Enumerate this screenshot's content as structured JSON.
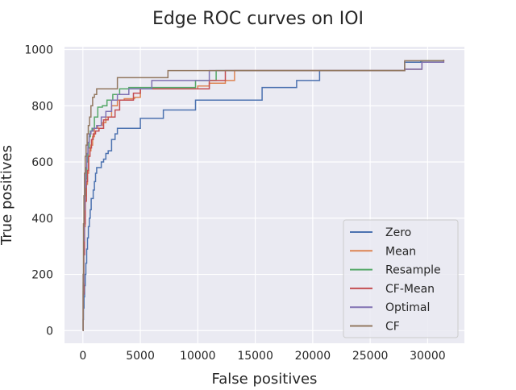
{
  "chart_data": {
    "type": "line",
    "title": "Edge ROC curves on IOI",
    "xlabel": "False positives",
    "ylabel": "True positives",
    "xlim": [
      -1600,
      33200
    ],
    "ylim": [
      -45,
      1010
    ],
    "xticks": [
      0,
      5000,
      10000,
      15000,
      20000,
      25000,
      30000
    ],
    "yticks": [
      0,
      200,
      400,
      600,
      800,
      1000
    ],
    "grid": true,
    "legend_position": "lower right",
    "background": "#eaeaf2",
    "series": [
      {
        "name": "Zero",
        "color": "#4c72b0",
        "x": [
          0,
          20,
          50,
          100,
          150,
          200,
          260,
          330,
          400,
          480,
          560,
          640,
          720,
          800,
          900,
          1000,
          1100,
          1200,
          1400,
          1600,
          1800,
          2000,
          2200,
          2500,
          2800,
          3000,
          5000,
          7000,
          9800,
          15600,
          18600,
          20600,
          28000,
          29400,
          31400
        ],
        "y": [
          0,
          40,
          80,
          120,
          160,
          200,
          240,
          290,
          330,
          370,
          400,
          430,
          470,
          470,
          500,
          530,
          560,
          580,
          580,
          600,
          610,
          630,
          640,
          680,
          700,
          720,
          755,
          785,
          820,
          865,
          890,
          925,
          955,
          960,
          963
        ]
      },
      {
        "name": "Mean",
        "color": "#dd8452",
        "x": [
          0,
          30,
          80,
          130,
          200,
          300,
          400,
          500,
          600,
          700,
          850,
          1000,
          1300,
          1700,
          2000,
          2500,
          3000,
          3600,
          4200,
          4500,
          5000,
          10000,
          11000,
          12400,
          13200,
          28000,
          29500,
          31400
        ],
        "y": [
          0,
          140,
          280,
          370,
          460,
          520,
          560,
          620,
          640,
          660,
          690,
          720,
          730,
          740,
          760,
          800,
          820,
          825,
          825,
          830,
          860,
          870,
          880,
          890,
          925,
          930,
          955,
          963
        ]
      },
      {
        "name": "Resample",
        "color": "#55a868",
        "x": [
          0,
          30,
          70,
          120,
          180,
          260,
          350,
          450,
          550,
          650,
          800,
          1000,
          1300,
          1700,
          2100,
          2600,
          3200,
          4000,
          5000,
          9800,
          11600,
          28000,
          29500,
          31400
        ],
        "y": [
          0,
          160,
          300,
          400,
          480,
          540,
          600,
          650,
          690,
          710,
          720,
          760,
          795,
          800,
          820,
          840,
          860,
          865,
          865,
          890,
          925,
          930,
          960,
          963
        ]
      },
      {
        "name": "CF-Mean",
        "color": "#c44e52",
        "x": [
          0,
          30,
          80,
          140,
          210,
          300,
          400,
          500,
          620,
          750,
          900,
          1100,
          1400,
          1800,
          2200,
          2800,
          3200,
          4400,
          5000,
          11000,
          12400,
          28000,
          29500,
          31400
        ],
        "y": [
          0,
          130,
          270,
          380,
          460,
          530,
          570,
          620,
          650,
          680,
          700,
          710,
          720,
          750,
          760,
          785,
          820,
          845,
          860,
          890,
          925,
          930,
          955,
          963
        ]
      },
      {
        "name": "Optimal",
        "color": "#8172b3",
        "x": [
          0,
          25,
          60,
          110,
          170,
          250,
          340,
          440,
          550,
          700,
          900,
          1200,
          1600,
          2000,
          2500,
          3000,
          4000,
          6000,
          11000,
          28000,
          29500,
          31400
        ],
        "y": [
          0,
          170,
          320,
          430,
          510,
          580,
          630,
          670,
          700,
          710,
          720,
          730,
          760,
          780,
          820,
          840,
          860,
          890,
          925,
          930,
          955,
          963
        ]
      },
      {
        "name": "CF",
        "color": "#937860",
        "x": [
          0,
          20,
          50,
          90,
          140,
          200,
          280,
          370,
          470,
          580,
          700,
          850,
          1000,
          1200,
          3000,
          7400,
          28000,
          31400
        ],
        "y": [
          0,
          200,
          380,
          480,
          560,
          620,
          660,
          700,
          730,
          760,
          800,
          830,
          840,
          860,
          900,
          925,
          960,
          963
        ]
      }
    ]
  }
}
